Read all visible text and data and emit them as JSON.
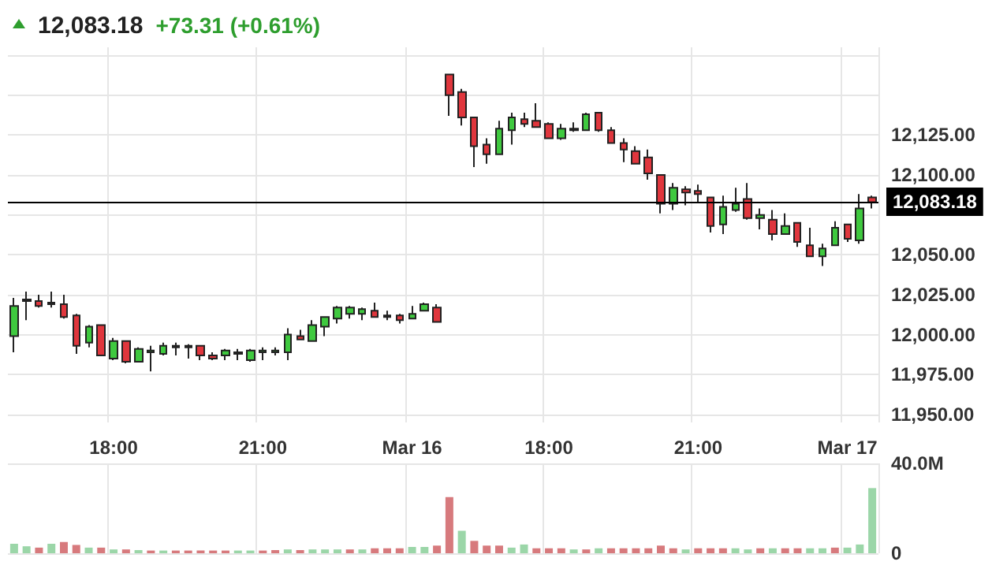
{
  "chart_data": [
    {
      "type": "candlestick",
      "title": "12,083.18",
      "subtitle": "+73.31 (+0.61%)",
      "categories": [
        null,
        null,
        null,
        null,
        null,
        null,
        null,
        null,
        "18:00",
        null,
        null,
        null,
        null,
        null,
        null,
        null,
        null,
        null,
        null,
        null,
        "21:00",
        null,
        null,
        null,
        null,
        null,
        null,
        null,
        null,
        null,
        null,
        null,
        "Mar 16",
        null,
        null,
        null,
        null,
        null,
        null,
        null,
        null,
        null,
        null,
        "18:00",
        null,
        null,
        null,
        null,
        null,
        null,
        null,
        null,
        null,
        null,
        null,
        "21:00",
        null,
        null,
        null,
        null,
        null,
        null,
        null,
        null,
        null,
        null,
        null,
        "Mar 17",
        null,
        null
      ],
      "ohlc": [
        [
          11999,
          12023,
          11989,
          12018
        ],
        [
          12021,
          12027,
          12009,
          12022
        ],
        [
          12021,
          12025,
          12017,
          12018
        ],
        [
          12020,
          12027,
          12017,
          12019
        ],
        [
          12019,
          12025,
          12010,
          12011
        ],
        [
          12012,
          12013,
          11988,
          11993
        ],
        [
          11995,
          12006,
          11992,
          12005
        ],
        [
          12006,
          12006,
          11987,
          11987
        ],
        [
          11985,
          11998,
          11984,
          11996
        ],
        [
          11996,
          11996,
          11982,
          11983
        ],
        [
          11983,
          11992,
          11983,
          11991
        ],
        [
          11989,
          11993,
          11977,
          11990
        ],
        [
          11988,
          11995,
          11987,
          11993
        ],
        [
          11992,
          11995,
          11987,
          11993
        ],
        [
          11993,
          11994,
          11985,
          11992
        ],
        [
          11993,
          11993,
          11984,
          11987
        ],
        [
          11987,
          11989,
          11984,
          11985
        ],
        [
          11987,
          11991,
          11984,
          11990
        ],
        [
          11988,
          11991,
          11984,
          11989
        ],
        [
          11984,
          11991,
          11983,
          11990
        ],
        [
          11989,
          11992,
          11984,
          11990
        ],
        [
          11989,
          11992,
          11987,
          11990
        ],
        [
          11989,
          12004,
          11984,
          12000
        ],
        [
          11999,
          12003,
          11997,
          11997
        ],
        [
          11996,
          12009,
          11996,
          12006
        ],
        [
          12005,
          12011,
          11999,
          12011
        ],
        [
          12010,
          12018,
          12007,
          12017
        ],
        [
          12013,
          12018,
          12010,
          12017
        ],
        [
          12013,
          12017,
          12009,
          12016
        ],
        [
          12015,
          12020,
          12011,
          12011
        ],
        [
          12012,
          12015,
          12009,
          12011
        ],
        [
          12012,
          12013,
          12007,
          12009
        ],
        [
          12010,
          12018,
          12010,
          12013
        ],
        [
          12015,
          12020,
          12015,
          12019
        ],
        [
          12017,
          12019,
          12008,
          12008
        ],
        [
          12163,
          12163,
          12137,
          12150
        ],
        [
          12152,
          12154,
          12131,
          12136
        ],
        [
          12136,
          12136,
          12105,
          12118
        ],
        [
          12119,
          12123,
          12107,
          12113
        ],
        [
          12113,
          12134,
          12113,
          12129
        ],
        [
          12128,
          12139,
          12119,
          12136
        ],
        [
          12135,
          12139,
          12130,
          12132
        ],
        [
          12134,
          12145,
          12130,
          12130
        ],
        [
          12132,
          12133,
          12123,
          12123
        ],
        [
          12123,
          12132,
          12122,
          12129
        ],
        [
          12128,
          12133,
          12127,
          12129
        ],
        [
          12128,
          12139,
          12128,
          12138
        ],
        [
          12139,
          12139,
          12127,
          12128
        ],
        [
          12128,
          12130,
          12120,
          12120
        ],
        [
          12120,
          12123,
          12108,
          12116
        ],
        [
          12115,
          12118,
          12107,
          12107
        ],
        [
          12111,
          12116,
          12097,
          12101
        ],
        [
          12100,
          12100,
          12076,
          12082
        ],
        [
          12082,
          12095,
          12078,
          12092
        ],
        [
          12091,
          12093,
          12081,
          12089
        ],
        [
          12090,
          12094,
          12083,
          12088
        ],
        [
          12086,
          12086,
          12064,
          12068
        ],
        [
          12069,
          12087,
          12063,
          12080
        ],
        [
          12078,
          12092,
          12077,
          12082
        ],
        [
          12085,
          12095,
          12072,
          12073
        ],
        [
          12073,
          12079,
          12066,
          12075
        ],
        [
          12072,
          12078,
          12059,
          12063
        ],
        [
          12063,
          12076,
          12063,
          12068
        ],
        [
          12070,
          12070,
          12055,
          12058
        ],
        [
          12056,
          12067,
          12049,
          12049
        ],
        [
          12049,
          12057,
          12043,
          12054
        ],
        [
          12056,
          12071,
          12056,
          12067
        ],
        [
          12069,
          12069,
          12058,
          12060
        ],
        [
          12059,
          12088,
          12057,
          12079
        ],
        [
          12086,
          12087,
          12079,
          12083
        ]
      ],
      "colors": [
        "#3fc93f",
        "#3fc93f",
        "#e0363d",
        "#e0363d",
        "#e0363d",
        "#e0363d",
        "#3fc93f",
        "#e0363d",
        "#3fc93f",
        "#e0363d",
        "#3fc93f",
        "#3fc93f",
        "#3fc93f",
        "#3fc93f",
        "#e0363d",
        "#e0363d",
        "#e0363d",
        "#3fc93f",
        "#3fc93f",
        "#3fc93f",
        "#3fc93f",
        "#3fc93f",
        "#3fc93f",
        "#e0363d",
        "#3fc93f",
        "#3fc93f",
        "#3fc93f",
        "#3fc93f",
        "#3fc93f",
        "#e0363d",
        "#e0363d",
        "#e0363d",
        "#3fc93f",
        "#3fc93f",
        "#e0363d",
        "#e0363d",
        "#e0363d",
        "#e0363d",
        "#e0363d",
        "#3fc93f",
        "#3fc93f",
        "#e0363d",
        "#e0363d",
        "#e0363d",
        "#3fc93f",
        "#3fc93f",
        "#3fc93f",
        "#e0363d",
        "#e0363d",
        "#e0363d",
        "#e0363d",
        "#e0363d",
        "#e0363d",
        "#3fc93f",
        "#e0363d",
        "#e0363d",
        "#e0363d",
        "#3fc93f",
        "#3fc93f",
        "#e0363d",
        "#3fc93f",
        "#e0363d",
        "#3fc93f",
        "#e0363d",
        "#e0363d",
        "#3fc93f",
        "#3fc93f",
        "#e0363d",
        "#3fc93f",
        "#e0363d"
      ],
      "ylim": [
        11945,
        12180
      ],
      "yticks": [
        {
          "value": 11950,
          "label": "11,950.00"
        },
        {
          "value": 11975,
          "label": "11,975.00"
        },
        {
          "value": 12000,
          "label": "12,000.00"
        },
        {
          "value": 12025,
          "label": "12,025.00"
        },
        {
          "value": 12050,
          "label": "12,050.00"
        },
        {
          "value": 12075,
          "label": null
        },
        {
          "value": 12100,
          "label": "12,100.00"
        },
        {
          "value": 12125,
          "label": "12,125.00"
        },
        {
          "value": 12150,
          "label": null
        },
        {
          "value": 12175,
          "label": null
        }
      ],
      "ref_lines": [
        {
          "axis": "y",
          "value": 12083.18,
          "label": "12,083.18",
          "color": "#000000"
        }
      ],
      "grid": true
    },
    {
      "type": "bar",
      "categories": [
        null,
        null,
        null,
        null,
        null,
        null,
        null,
        null,
        null,
        null,
        null,
        null,
        null,
        null,
        null,
        null,
        null,
        null,
        null,
        null,
        null,
        null,
        null,
        null,
        null,
        null,
        null,
        null,
        null,
        null,
        null,
        null,
        null,
        null,
        null,
        null,
        null,
        null,
        null,
        null,
        null,
        null,
        null,
        null,
        null,
        null,
        null,
        null,
        null,
        null,
        null,
        null,
        null,
        null,
        null,
        null,
        null,
        null,
        null,
        null,
        null,
        null,
        null,
        null,
        null,
        null,
        null,
        null,
        null,
        null
      ],
      "values": [
        4.2,
        3.1,
        2.5,
        4.2,
        5.0,
        3.7,
        2.5,
        2.5,
        1.7,
        1.7,
        1.4,
        1.2,
        1.2,
        1.2,
        1.2,
        1.2,
        1.2,
        1.2,
        1.2,
        1.2,
        1.2,
        1.4,
        1.7,
        1.4,
        1.7,
        1.7,
        1.7,
        1.7,
        1.7,
        2.2,
        2.2,
        2.2,
        2.8,
        2.8,
        3.4,
        25,
        10,
        5.5,
        3.4,
        3.4,
        2.5,
        3.9,
        2.2,
        2.2,
        2.2,
        1.7,
        1.7,
        2.2,
        2.2,
        2.2,
        2.2,
        2.2,
        3.4,
        2.2,
        1.7,
        2.2,
        2.2,
        2.2,
        2.2,
        1.7,
        2.2,
        2.2,
        2.2,
        2.2,
        2.2,
        2.2,
        2.5,
        2.5,
        3.9,
        29
      ],
      "colors": [
        "#9bd6a8",
        "#9bd6a8",
        "#d77a7d",
        "#9bd6a8",
        "#d77a7d",
        "#d77a7d",
        "#9bd6a8",
        "#d77a7d",
        "#9bd6a8",
        "#d77a7d",
        "#9bd6a8",
        "#d77a7d",
        "#9bd6a8",
        "#d77a7d",
        "#d77a7d",
        "#d77a7d",
        "#d77a7d",
        "#d77a7d",
        "#9bd6a8",
        "#9bd6a8",
        "#d77a7d",
        "#d77a7d",
        "#9bd6a8",
        "#d77a7d",
        "#9bd6a8",
        "#9bd6a8",
        "#9bd6a8",
        "#d77a7d",
        "#9bd6a8",
        "#d77a7d",
        "#d77a7d",
        "#d77a7d",
        "#9bd6a8",
        "#9bd6a8",
        "#d77a7d",
        "#d77a7d",
        "#9bd6a8",
        "#d77a7d",
        "#d77a7d",
        "#d77a7d",
        "#9bd6a8",
        "#9bd6a8",
        "#d77a7d",
        "#d77a7d",
        "#d77a7d",
        "#9bd6a8",
        "#d77a7d",
        "#9bd6a8",
        "#d77a7d",
        "#d77a7d",
        "#d77a7d",
        "#d77a7d",
        "#d77a7d",
        "#d77a7d",
        "#9bd6a8",
        "#d77a7d",
        "#d77a7d",
        "#d77a7d",
        "#9bd6a8",
        "#9bd6a8",
        "#d77a7d",
        "#9bd6a8",
        "#d77a7d",
        "#d77a7d",
        "#9bd6a8",
        "#9bd6a8",
        "#d77a7d",
        "#9bd6a8",
        "#9bd6a8",
        "#9bd6a8"
      ],
      "ylim": [
        0,
        40
      ],
      "yticks": [
        {
          "value": 0,
          "label": "0"
        },
        {
          "value": 40,
          "label": "40.0M"
        }
      ],
      "tick_labels": "y",
      "grid": true
    }
  ]
}
